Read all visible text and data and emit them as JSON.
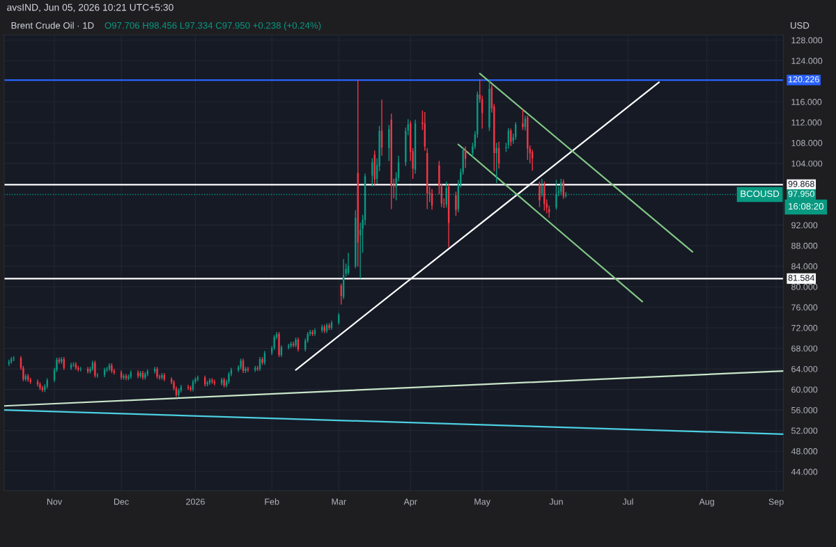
{
  "chart_data": {
    "type": "candlestick",
    "title": "Brent Crude Oil · 1D",
    "annotations": [
      "avsIND, Jun 05, 2026 10:21 UTC+5:30",
      "O97.706 H98.456 L97.334 C97.950 +0.238 (+0.24%)",
      "USD",
      "BCOUSD",
      "16:08:20"
    ],
    "colors": [
      "#089981",
      "#089981",
      "#089981",
      "#f23645",
      "#f23645",
      "#089981",
      "#f23645",
      "#f23645",
      "#f23645",
      "#f23645",
      "#f23645",
      "#089981",
      "#089981",
      "#089981",
      "#089981",
      "#f23645",
      "#089981",
      "#f23645",
      "#089981",
      "#089981",
      "#f23645",
      "#f23645",
      "#089981",
      "#f23645",
      "#089981",
      "#089981",
      "#f23645",
      "#089981",
      "#089981",
      "#089981",
      "#089981",
      "#f23645",
      "#f23645",
      "#f23645",
      "#089981",
      "#f23645",
      "#089981",
      "#089981",
      "#f23645",
      "#089981",
      "#f23645",
      "#089981",
      "#089981",
      "#089981",
      "#f23645",
      "#f23645",
      "#089981",
      "#f23645",
      "#f23645",
      "#f23645",
      "#f23645",
      "#089981",
      "#089981",
      "#f23645",
      "#f23645",
      "#089981",
      "#089981",
      "#089981",
      "#f23645",
      "#089981",
      "#089981",
      "#f23645",
      "#f23645",
      "#089981",
      "#f23645",
      "#089981",
      "#089981",
      "#089981",
      "#089981",
      "#089981",
      "#f23645",
      "#089981",
      "#f23645",
      "#089981",
      "#f23645",
      "#089981",
      "#f23645",
      "#089981",
      "#089981",
      "#089981",
      "#089981",
      "#f23645",
      "#089981",
      "#089981",
      "#089981",
      "#f23645",
      "#089981",
      "#f23645",
      "#089981",
      "#089981",
      "#089981",
      "#f23645",
      "#089981",
      "#089981",
      "#f23645",
      "#089981",
      "#f23645",
      "#089981",
      "#089981",
      "#f23645",
      "#089981",
      "#089981",
      "#089981",
      "#089981",
      "#f23645",
      "#089981",
      "#089981",
      "#089981",
      "#089981",
      "#f23645",
      "#089981",
      "#089981",
      "#f23645",
      "#089981",
      "#f23645",
      "#f23645",
      "#089981",
      "#089981",
      "#089981",
      "#089981",
      "#f23645",
      "#f23645",
      "#089981",
      "#f23645",
      "#f23645",
      "#f23645",
      "#f23645",
      "#f23645",
      "#f23645",
      "#f23645",
      "#f23645",
      "#089981",
      "#f23645",
      "#f23645",
      "#089981",
      "#089981",
      "#089981",
      "#f23645",
      "#089981",
      "#089981",
      "#089981",
      "#f23645",
      "#f23645",
      "#089981",
      "#f23645",
      "#f23645",
      "#089981",
      "#f23645",
      "#089981",
      "#089981",
      "#f23645",
      "#089981",
      "#089981",
      "#f23645",
      "#089981",
      "#f23645",
      "#f23645",
      "#f23645",
      "#f23645",
      "#089981",
      "#f23645",
      "#f23645",
      "#f23645",
      "#089981",
      "#089981",
      "#089981",
      "#f23645",
      "#089981"
    ],
    "x": [
      "2025-10-15",
      "2025-10-16",
      "2025-10-17",
      "2025-10-20",
      "2025-10-21",
      "2025-10-22",
      "2025-10-23",
      "2025-10-24",
      "2025-10-27",
      "2025-10-28",
      "2025-10-29",
      "2025-10-30",
      "2025-10-31",
      "2025-11-03",
      "2025-11-04",
      "2025-11-05",
      "2025-11-06",
      "2025-11-07",
      "2025-11-10",
      "2025-11-11",
      "2025-11-12",
      "2025-11-13",
      "2025-11-14",
      "2025-11-17",
      "2025-11-18",
      "2025-11-19",
      "2025-11-20",
      "2025-11-21",
      "2025-11-24",
      "2025-11-25",
      "2025-11-26",
      "2025-11-27",
      "2025-11-28",
      "2025-12-01",
      "2025-12-02",
      "2025-12-03",
      "2025-12-04",
      "2025-12-05",
      "2025-12-08",
      "2025-12-09",
      "2025-12-10",
      "2025-12-11",
      "2025-12-12",
      "2025-12-15",
      "2025-12-16",
      "2025-12-17",
      "2025-12-18",
      "2025-12-19",
      "2025-12-22",
      "2025-12-23",
      "2025-12-24",
      "2025-12-25",
      "2025-12-26",
      "2025-12-29",
      "2025-12-30",
      "2025-12-31",
      "2026-01-01",
      "2026-01-02",
      "2026-01-05",
      "2026-01-06",
      "2026-01-07",
      "2026-01-08",
      "2026-01-09",
      "2026-01-12",
      "2026-01-13",
      "2026-01-14",
      "2026-01-15",
      "2026-01-16",
      "2026-01-19",
      "2026-01-20",
      "2026-01-21",
      "2026-01-22",
      "2026-01-23",
      "2026-01-26",
      "2026-01-27",
      "2026-01-28",
      "2026-01-29",
      "2026-01-30",
      "2026-02-02",
      "2026-02-03",
      "2026-02-04",
      "2026-02-05",
      "2026-02-06",
      "2026-02-09",
      "2026-02-10",
      "2026-02-11",
      "2026-02-12",
      "2026-02-13",
      "2026-02-16",
      "2026-02-17",
      "2026-02-18",
      "2026-02-19",
      "2026-02-20",
      "2026-02-23",
      "2026-02-24",
      "2026-02-25",
      "2026-02-26",
      "2026-02-27",
      "2026-03-02",
      "2026-03-03",
      "2026-03-04",
      "2026-03-05",
      "2026-03-06",
      "2026-03-09",
      "2026-03-10",
      "2026-03-11",
      "2026-03-12",
      "2026-03-13",
      "2026-03-16",
      "2026-03-17",
      "2026-03-18",
      "2026-03-19",
      "2026-03-20",
      "2026-03-23",
      "2026-03-24",
      "2026-03-25",
      "2026-03-26",
      "2026-03-27",
      "2026-03-30",
      "2026-03-31",
      "2026-04-01",
      "2026-04-02",
      "2026-04-03",
      "2026-04-06",
      "2026-04-07",
      "2026-04-08",
      "2026-04-09",
      "2026-04-10",
      "2026-04-13",
      "2026-04-14",
      "2026-04-15",
      "2026-04-16",
      "2026-04-17",
      "2026-04-20",
      "2026-04-21",
      "2026-04-22",
      "2026-04-23",
      "2026-04-24",
      "2026-04-27",
      "2026-04-28",
      "2026-04-29",
      "2026-04-30",
      "2026-05-01",
      "2026-05-04",
      "2026-05-05",
      "2026-05-06",
      "2026-05-07",
      "2026-05-08",
      "2026-05-11",
      "2026-05-12",
      "2026-05-13",
      "2026-05-14",
      "2026-05-15",
      "2026-05-18",
      "2026-05-19",
      "2026-05-20",
      "2026-05-21",
      "2026-05-22",
      "2026-05-25",
      "2026-05-26",
      "2026-05-27",
      "2026-05-28",
      "2026-05-29",
      "2026-06-01",
      "2026-06-02",
      "2026-06-03",
      "2026-06-04",
      "2026-06-05"
    ],
    "ohlc": [
      [
        65.0,
        65.8,
        64.6,
        65.4
      ],
      [
        65.4,
        66.3,
        65.0,
        65.9
      ],
      [
        65.9,
        66.5,
        65.5,
        66.1
      ],
      [
        66.1,
        66.5,
        63.8,
        64.2
      ],
      [
        64.2,
        64.6,
        61.6,
        62.0
      ],
      [
        62.0,
        63.0,
        61.6,
        62.6
      ],
      [
        62.6,
        63.0,
        61.5,
        61.9
      ],
      [
        61.9,
        62.3,
        61.1,
        61.5
      ],
      [
        61.5,
        61.9,
        60.6,
        61.0
      ],
      [
        61.0,
        61.4,
        59.9,
        60.3
      ],
      [
        60.3,
        60.7,
        59.5,
        59.9
      ],
      [
        59.9,
        61.0,
        59.5,
        60.6
      ],
      [
        60.6,
        62.2,
        60.2,
        61.8
      ],
      [
        61.8,
        64.2,
        61.4,
        63.8
      ],
      [
        63.8,
        66.2,
        63.4,
        65.8
      ],
      [
        65.8,
        66.2,
        65.0,
        65.4
      ],
      [
        65.4,
        66.3,
        65.0,
        65.9
      ],
      [
        65.9,
        66.3,
        63.8,
        64.2
      ],
      [
        64.2,
        65.2,
        63.8,
        64.8
      ],
      [
        64.8,
        65.3,
        64.4,
        64.9
      ],
      [
        64.9,
        65.3,
        63.8,
        64.2
      ],
      [
        64.2,
        64.6,
        63.5,
        63.9
      ],
      [
        63.9,
        64.4,
        63.5,
        64.0
      ],
      [
        64.0,
        64.4,
        63.1,
        63.5
      ],
      [
        63.5,
        64.4,
        63.1,
        64.0
      ],
      [
        64.0,
        65.6,
        63.6,
        65.2
      ],
      [
        65.2,
        65.6,
        62.3,
        62.7
      ],
      [
        62.7,
        63.2,
        62.3,
        62.8
      ],
      [
        62.8,
        64.2,
        62.4,
        63.8
      ],
      [
        63.8,
        64.4,
        63.4,
        64.0
      ],
      [
        64.0,
        65.1,
        63.6,
        64.7
      ],
      [
        64.7,
        65.1,
        63.2,
        63.6
      ],
      [
        63.6,
        64.0,
        62.9,
        63.3
      ],
      [
        63.3,
        63.7,
        61.9,
        62.3
      ],
      [
        62.3,
        63.0,
        61.9,
        62.6
      ],
      [
        62.6,
        63.0,
        61.8,
        62.2
      ],
      [
        62.2,
        62.9,
        61.8,
        62.5
      ],
      [
        62.5,
        63.7,
        62.1,
        63.3
      ],
      [
        63.3,
        63.7,
        62.2,
        62.6
      ],
      [
        62.6,
        63.6,
        62.2,
        63.2
      ],
      [
        63.2,
        63.6,
        61.9,
        62.3
      ],
      [
        62.3,
        63.4,
        61.9,
        63.0
      ],
      [
        63.0,
        63.9,
        62.6,
        63.5
      ],
      [
        63.5,
        64.4,
        63.1,
        64.0
      ],
      [
        64.0,
        64.4,
        62.1,
        62.5
      ],
      [
        62.5,
        62.9,
        61.9,
        62.3
      ],
      [
        62.3,
        63.2,
        61.9,
        62.8
      ],
      [
        62.8,
        63.2,
        61.6,
        62.0
      ],
      [
        62.0,
        62.4,
        61.0,
        61.4
      ],
      [
        61.4,
        61.8,
        59.8,
        60.2
      ],
      [
        60.2,
        60.6,
        58.5,
        58.9
      ],
      [
        58.9,
        60.2,
        58.5,
        59.8
      ],
      [
        59.8,
        60.9,
        59.4,
        60.5
      ],
      [
        60.5,
        60.9,
        59.9,
        60.3
      ],
      [
        60.3,
        60.7,
        59.6,
        60.0
      ],
      [
        60.0,
        61.9,
        59.6,
        61.5
      ],
      [
        61.5,
        62.4,
        61.1,
        62.0
      ],
      [
        62.0,
        62.7,
        61.6,
        62.3
      ],
      [
        62.3,
        62.7,
        60.6,
        61.0
      ],
      [
        61.0,
        61.7,
        60.6,
        61.3
      ],
      [
        61.3,
        62.2,
        60.9,
        61.8
      ],
      [
        61.8,
        62.2,
        61.1,
        61.5
      ],
      [
        61.5,
        61.9,
        60.8,
        61.2
      ],
      [
        61.2,
        62.3,
        60.8,
        61.9
      ],
      [
        61.9,
        62.3,
        60.4,
        60.8
      ],
      [
        60.8,
        61.9,
        60.4,
        61.5
      ],
      [
        61.5,
        63.4,
        61.1,
        63.0
      ],
      [
        63.0,
        64.2,
        62.6,
        63.8
      ],
      [
        63.8,
        64.7,
        63.4,
        64.3
      ],
      [
        64.3,
        66.0,
        63.9,
        65.6
      ],
      [
        65.6,
        66.0,
        63.2,
        63.6
      ],
      [
        63.6,
        64.4,
        63.2,
        64.0
      ],
      [
        64.0,
        64.4,
        63.4,
        63.8
      ],
      [
        63.8,
        64.6,
        63.4,
        64.2
      ],
      [
        64.2,
        64.6,
        63.6,
        64.0
      ],
      [
        64.0,
        66.3,
        63.6,
        65.9
      ],
      [
        65.9,
        66.3,
        64.8,
        65.2
      ],
      [
        65.2,
        67.5,
        64.8,
        67.1
      ],
      [
        67.1,
        68.5,
        66.7,
        68.1
      ],
      [
        68.1,
        70.6,
        67.7,
        70.2
      ],
      [
        70.2,
        71.2,
        69.8,
        70.8
      ],
      [
        70.8,
        71.2,
        66.3,
        66.7
      ],
      [
        66.7,
        68.6,
        66.3,
        68.2
      ],
      [
        68.2,
        68.9,
        67.8,
        68.5
      ],
      [
        68.5,
        69.3,
        68.1,
        68.9
      ],
      [
        68.9,
        69.3,
        68.2,
        68.6
      ],
      [
        68.6,
        70.1,
        68.2,
        69.7
      ],
      [
        69.7,
        70.1,
        67.4,
        67.8
      ],
      [
        67.8,
        69.9,
        67.4,
        69.5
      ],
      [
        69.5,
        71.2,
        69.1,
        70.8
      ],
      [
        70.8,
        71.6,
        70.4,
        71.2
      ],
      [
        71.2,
        71.6,
        70.4,
        70.8
      ],
      [
        70.8,
        71.9,
        70.4,
        71.5
      ],
      [
        71.5,
        72.6,
        71.1,
        72.2
      ],
      [
        72.2,
        72.6,
        71.0,
        71.4
      ],
      [
        71.4,
        72.9,
        71.0,
        72.5
      ],
      [
        72.5,
        72.9,
        71.6,
        72.0
      ],
      [
        72.0,
        73.4,
        71.6,
        73.0
      ],
      [
        73.0,
        74.9,
        72.6,
        74.5
      ],
      [
        80.2,
        80.6,
        76.5,
        78.2
      ],
      [
        78.0,
        85.4,
        77.6,
        82.3
      ],
      [
        82.5,
        84.5,
        82.0,
        83.5
      ],
      [
        82.7,
        86.6,
        82.3,
        84.0
      ],
      [
        84.0,
        94.9,
        83.6,
        93.4
      ],
      [
        102.2,
        120.2,
        83.9,
        88.6
      ],
      [
        90.0,
        92.5,
        81.6,
        91.1
      ],
      [
        91.3,
        94.0,
        86.6,
        93.0
      ],
      [
        93.0,
        102.0,
        92.0,
        101.5
      ],
      [
        101.6,
        105.0,
        99.5,
        104.2
      ],
      [
        105.7,
        106.5,
        99.8,
        100.9
      ],
      [
        101.0,
        105.0,
        100.0,
        103.7
      ],
      [
        103.5,
        111.3,
        102.5,
        110.3
      ],
      [
        110.4,
        116.4,
        105.5,
        107.1
      ],
      [
        107.0,
        111.5,
        104.5,
        110.7
      ],
      [
        112.5,
        113.7,
        95.1,
        99.6
      ],
      [
        99.6,
        101.0,
        97.2,
        99.4
      ],
      [
        99.5,
        102.3,
        96.8,
        101.2
      ],
      [
        101.2,
        105.5,
        100.5,
        104.2
      ],
      [
        104.2,
        111.0,
        103.5,
        110.3
      ],
      [
        110.4,
        112.6,
        109.5,
        111.6
      ],
      [
        111.8,
        112.3,
        104.5,
        106.2
      ],
      [
        106.4,
        107.0,
        101.0,
        103.0
      ],
      [
        102.8,
        112.5,
        102.0,
        111.8
      ],
      [
        112.0,
        114.3,
        110.5,
        111.7
      ],
      [
        111.8,
        114.0,
        106.5,
        107.3
      ],
      [
        106.0,
        107.0,
        95.1,
        98.2
      ],
      [
        98.3,
        99.5,
        96.5,
        98.1
      ],
      [
        98.1,
        99.0,
        95.0,
        95.8
      ],
      [
        103.6,
        104.5,
        98.0,
        99.6
      ],
      [
        99.5,
        100.0,
        95.5,
        96.2
      ],
      [
        96.2,
        97.2,
        95.3,
        96.1
      ],
      [
        96.0,
        100.5,
        95.4,
        99.2
      ],
      [
        99.5,
        100.0,
        87.7,
        92.4
      ],
      [
        97.8,
        98.5,
        93.8,
        94.9
      ],
      [
        95.1,
        100.8,
        94.5,
        99.9
      ],
      [
        99.9,
        103.0,
        99.3,
        102.3
      ],
      [
        102.3,
        107.2,
        101.8,
        106.6
      ],
      [
        106.6,
        107.3,
        103.1,
        104.9
      ],
      [
        106.0,
        108.0,
        105.3,
        107.3
      ],
      [
        107.3,
        110.3,
        106.8,
        109.7
      ],
      [
        109.7,
        118.0,
        109.0,
        117.4
      ],
      [
        117.4,
        120.4,
        115.8,
        116.5
      ],
      [
        116.5,
        117.2,
        110.8,
        113.8
      ],
      [
        111.0,
        120.1,
        110.3,
        118.5
      ],
      [
        118.8,
        119.3,
        113.9,
        114.7
      ],
      [
        115.1,
        115.6,
        102.5,
        106.0
      ],
      [
        106.0,
        108.0,
        100.2,
        107.0
      ],
      [
        107.0,
        108.2,
        103.0,
        104.0
      ],
      [
        107.0,
        108.0,
        106.2,
        107.2
      ],
      [
        107.6,
        110.9,
        106.9,
        110.4
      ],
      [
        110.4,
        110.8,
        107.4,
        108.2
      ],
      [
        108.4,
        109.8,
        107.8,
        109.1
      ],
      [
        109.1,
        112.0,
        108.6,
        111.6
      ],
      [
        111.8,
        114.5,
        110.5,
        111.1
      ],
      [
        111.1,
        113.3,
        110.4,
        112.7
      ],
      [
        113.0,
        113.3,
        104.7,
        106.9
      ],
      [
        106.9,
        107.5,
        104.0,
        106.0
      ],
      [
        106.2,
        106.7,
        102.6,
        105.0
      ],
      [
        99.9,
        100.5,
        95.5,
        96.8
      ],
      [
        98.1,
        101.0,
        97.5,
        99.6
      ],
      [
        99.9,
        100.5,
        94.8,
        96.1
      ],
      [
        96.2,
        97.0,
        94.3,
        95.4
      ],
      [
        95.1,
        95.8,
        93.4,
        94.5
      ],
      [
        95.4,
        100.8,
        95.0,
        98.1
      ],
      [
        98.3,
        99.5,
        97.6,
        98.5
      ],
      [
        98.5,
        101.0,
        97.8,
        100.3
      ],
      [
        100.5,
        100.9,
        97.1,
        97.6
      ],
      [
        97.706,
        98.456,
        97.334,
        97.95
      ]
    ],
    "series": [
      {
        "type": "line",
        "color": "#ffffff",
        "x": [
          "2026-02-12",
          "2026-07-14"
        ],
        "values": [
          63.8,
          119.8
        ]
      },
      {
        "type": "line",
        "color": "#81c784",
        "x": [
          "2026-04-30",
          "2026-07-28"
        ],
        "values": [
          121.5,
          86.8
        ]
      },
      {
        "type": "line",
        "color": "#81c784",
        "x": [
          "2026-04-21",
          "2026-07-07"
        ],
        "values": [
          107.7,
          77.1
        ]
      },
      {
        "type": "line",
        "color": "#c8e6c9",
        "x": [
          "2025-10-13",
          "2026-09-04"
        ],
        "values": [
          56.8,
          63.6
        ]
      },
      {
        "type": "line",
        "color": "#4dd0e1",
        "x": [
          "2025-10-13",
          "2026-09-04"
        ],
        "values": [
          56.0,
          51.3
        ]
      }
    ],
    "ref_lines": [
      {
        "axis": "y",
        "value": 120.226,
        "label": "120.226",
        "color": "#2962ff"
      },
      {
        "axis": "y",
        "value": 99.868,
        "label": "99.868",
        "color": "#ffffff"
      },
      {
        "axis": "y",
        "value": 81.584,
        "label": "81.584",
        "color": "#ffffff"
      },
      {
        "axis": "y",
        "value": 97.95,
        "label": "97.950",
        "color": "#089981",
        "line_style": "dotted"
      }
    ],
    "xlim": [
      "2025-10-13",
      "2026-09-04"
    ],
    "xticks": [
      {
        "value": "2025-11-03",
        "label": "Nov"
      },
      {
        "value": "2025-12-01",
        "label": "Dec"
      },
      {
        "value": "2026-01-01",
        "label": "2026"
      },
      {
        "value": "2026-02-02",
        "label": "Feb"
      },
      {
        "value": "2026-03-02",
        "label": "Mar"
      },
      {
        "value": "2026-04-01",
        "label": "Apr"
      },
      {
        "value": "2026-05-01",
        "label": "May"
      },
      {
        "value": "2026-06-01",
        "label": "Jun"
      },
      {
        "value": "2026-07-01",
        "label": "Jul"
      },
      {
        "value": "2026-08-03",
        "label": "Aug"
      },
      {
        "value": "2026-09-01",
        "label": "Sep"
      }
    ],
    "ylim": [
      40.3,
      129
    ],
    "yticks": [
      {
        "value": 44,
        "label": "44.000"
      },
      {
        "value": 48,
        "label": "48.000"
      },
      {
        "value": 52,
        "label": "52.000"
      },
      {
        "value": 56,
        "label": "56.000"
      },
      {
        "value": 60,
        "label": "60.000"
      },
      {
        "value": 64,
        "label": "64.000"
      },
      {
        "value": 68,
        "label": "68.000"
      },
      {
        "value": 72,
        "label": "72.000"
      },
      {
        "value": 76,
        "label": "76.000"
      },
      {
        "value": 80,
        "label": "80.000"
      },
      {
        "value": 84,
        "label": "84.000"
      },
      {
        "value": 88,
        "label": "88.000"
      },
      {
        "value": 92,
        "label": "92.000"
      },
      {
        "value": 104,
        "label": "104.000"
      },
      {
        "value": 108,
        "label": "108.000"
      },
      {
        "value": 112,
        "label": "112.000"
      },
      {
        "value": 116,
        "label": "116.000"
      },
      {
        "value": 124,
        "label": "124.000"
      },
      {
        "value": 128,
        "label": "128.000"
      }
    ],
    "grid": true
  }
}
